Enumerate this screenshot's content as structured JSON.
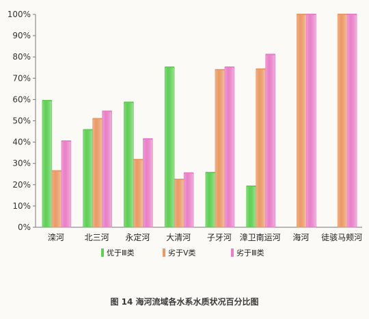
{
  "caption": "图 14  海河流域各水系水质状况百分比图",
  "chart_data": {
    "type": "bar",
    "categories": [
      "滦河",
      "北三河",
      "永定河",
      "大清河",
      "子牙河",
      "漳卫南运河",
      "海河",
      "徒骇马颊河"
    ],
    "y_ticks": [
      "0%",
      "10%",
      "20%",
      "30%",
      "40%",
      "50%",
      "60%",
      "70%",
      "80%",
      "90%",
      "100%"
    ],
    "ylim": [
      0,
      100
    ],
    "grid": false,
    "legend_position": "bottom",
    "series": [
      {
        "name": "优于Ⅲ类",
        "color": "#5fcf55",
        "values": [
          59.5,
          45.8,
          58.7,
          75.2,
          25.7,
          19.3,
          0,
          0
        ]
      },
      {
        "name": "劣于Ⅴ类",
        "color": "#ea9a66",
        "values": [
          26.5,
          51.0,
          31.8,
          22.5,
          74.0,
          74.3,
          100,
          100
        ]
      },
      {
        "name": "劣于Ⅲ类",
        "color": "#e97fc8",
        "values": [
          40.5,
          54.5,
          41.5,
          25.5,
          75.2,
          81.2,
          100,
          100
        ]
      }
    ]
  }
}
